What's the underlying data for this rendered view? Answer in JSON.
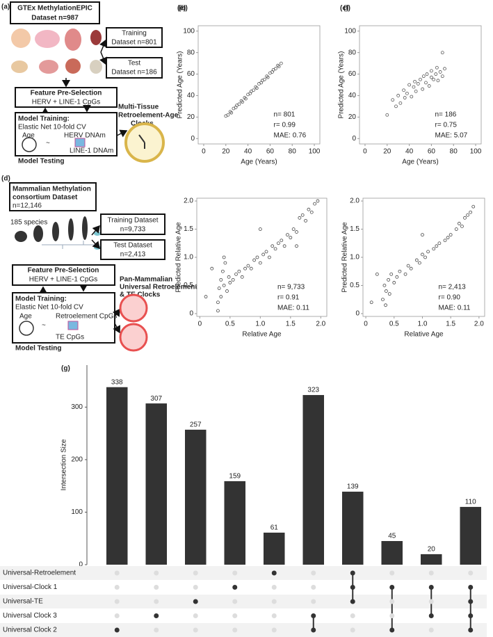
{
  "panel_a": {
    "label": "(a)",
    "dataset": [
      "GTEx MethylationEPIC",
      "Dataset n=987"
    ],
    "training": [
      "Training",
      "Dataset n=801"
    ],
    "test": [
      "Test",
      "Dataset n=186"
    ],
    "feature": [
      "Feature Pre-Selection",
      "HERV + LINE-1 CpGs"
    ],
    "model": [
      "Model Training:",
      "Elastic Net 10-fold CV",
      "Age",
      "HERV DNAm",
      "~",
      "LINE-1 DNAm"
    ],
    "testing": "Model Testing",
    "clocks": [
      "Multi-Tissue",
      "Retroelement-Age",
      "Clocks"
    ]
  },
  "panel_d": {
    "label": "(d)",
    "dataset": [
      "Mammalian Methylation",
      "consortium  Dataset",
      "n=12,146"
    ],
    "species": "185 species",
    "training": [
      "Training Dataset",
      "n=9,733"
    ],
    "test": [
      "Test Dataset",
      "n=2,413"
    ],
    "feature": [
      "Feature Pre-Selection",
      "HERV + LINE-1 CpGs"
    ],
    "model": [
      "Model Training:",
      "Elastic Net 10-fold CV",
      "Age",
      "Retroelement CpGs",
      "~",
      "TE CpGs"
    ],
    "testing": "Model Testing",
    "clocks": [
      "Pan-Mammalian",
      "Universal Retroelement",
      "& TE Clocks"
    ]
  },
  "chart_data": [
    {
      "type": "scatter",
      "panel": "(b)",
      "xlabel": "Age (Years)",
      "ylabel": "Predicted Age (Years)",
      "annotations": [
        "n= 801",
        "r= 0.99",
        "MAE: 0.76"
      ],
      "color": "#555",
      "xlim": [
        -5,
        105
      ],
      "ylim": [
        -5,
        105
      ],
      "xticks": [
        0,
        20,
        40,
        60,
        80,
        100
      ],
      "yticks": [
        0,
        20,
        40,
        60,
        80,
        100
      ],
      "x": [
        20,
        22,
        24,
        25,
        27,
        29,
        30,
        32,
        34,
        35,
        37,
        38,
        40,
        42,
        43,
        45,
        47,
        48,
        50,
        52,
        53,
        55,
        57,
        58,
        60,
        62,
        63,
        65,
        67,
        68,
        70
      ],
      "y": [
        21,
        22,
        25,
        24,
        28,
        29,
        31,
        32,
        35,
        34,
        38,
        37,
        41,
        42,
        44,
        45,
        48,
        47,
        51,
        52,
        54,
        55,
        58,
        57,
        61,
        62,
        64,
        65,
        68,
        67,
        70
      ]
    },
    {
      "type": "scatter",
      "panel": "(c)",
      "xlabel": "Age (Years)",
      "ylabel": "Predicted Age (Years)",
      "annotations": [
        "n= 186",
        "r= 0.75",
        "MAE: 5.07"
      ],
      "color": "#555",
      "xlim": [
        -5,
        105
      ],
      "ylim": [
        -5,
        105
      ],
      "xticks": [
        0,
        20,
        40,
        60,
        80,
        100
      ],
      "yticks": [
        0,
        20,
        40,
        60,
        80,
        100
      ],
      "x": [
        20,
        25,
        28,
        30,
        32,
        35,
        36,
        38,
        40,
        42,
        44,
        45,
        46,
        48,
        50,
        52,
        53,
        55,
        56,
        58,
        60,
        60,
        62,
        64,
        65,
        66,
        68,
        70,
        70,
        72
      ],
      "y": [
        22,
        36,
        30,
        40,
        33,
        45,
        38,
        42,
        50,
        39,
        48,
        53,
        44,
        51,
        55,
        46,
        58,
        52,
        60,
        49,
        57,
        63,
        55,
        60,
        66,
        54,
        62,
        80,
        58,
        65
      ]
    },
    {
      "type": "scatter",
      "panel": "(e)",
      "xlabel": "Relative Age",
      "ylabel": "Predicted Relative Age",
      "annotations": [
        "n= 9,733",
        "r= 0.91",
        "MAE: 0.11"
      ],
      "color": "#444",
      "xlim": [
        -0.05,
        2.1
      ],
      "ylim": [
        -0.05,
        2.05
      ],
      "xticks": [
        0,
        0.5,
        {
          "value": 1,
          "label": "1.0"
        },
        1.5,
        {
          "value": 2,
          "label": "2.0"
        }
      ],
      "yticks": [
        0,
        0.5,
        {
          "value": 1,
          "label": "1.0"
        },
        1.5,
        {
          "value": 2,
          "label": "2.0"
        }
      ],
      "x": [
        0.3,
        0.32,
        0.35,
        0.35,
        0.38,
        0.4,
        0.42,
        0.45,
        0.48,
        0.5,
        0.3,
        0.4,
        0.55,
        0.6,
        0.65,
        0.7,
        0.75,
        0.8,
        0.85,
        0.9,
        0.95,
        1.0,
        1.05,
        1.1,
        1.15,
        1.2,
        1.25,
        1.3,
        1.35,
        1.4,
        1.45,
        1.5,
        1.55,
        1.6,
        1.65,
        1.7,
        1.75,
        1.8,
        1.85,
        1.9,
        1.95,
        0.1,
        0.2,
        1.0,
        1.6
      ],
      "y": [
        0.2,
        0.45,
        0.6,
        0.3,
        0.75,
        0.5,
        0.9,
        0.4,
        0.65,
        0.55,
        0.05,
        1.0,
        0.6,
        0.7,
        0.75,
        0.65,
        0.8,
        0.85,
        0.8,
        0.95,
        1.0,
        0.9,
        1.05,
        1.1,
        1.0,
        1.2,
        1.15,
        1.25,
        1.3,
        1.2,
        1.4,
        1.35,
        1.5,
        1.45,
        1.7,
        1.75,
        1.65,
        1.85,
        1.8,
        1.95,
        2.0,
        0.3,
        0.8,
        1.5,
        1.2
      ]
    },
    {
      "type": "scatter",
      "panel": "(f)",
      "xlabel": "Relative Age",
      "ylabel": "Predicted Relative Age",
      "annotations": [
        "n= 2,413",
        "r= 0.90",
        "MAE: 0.11"
      ],
      "color": "#444",
      "xlim": [
        -0.05,
        2.1
      ],
      "ylim": [
        -0.05,
        2.05
      ],
      "xticks": [
        0,
        0.5,
        {
          "value": 1,
          "label": "1.0"
        },
        1.5,
        {
          "value": 2,
          "label": "2.0"
        }
      ],
      "yticks": [
        0,
        0.5,
        {
          "value": 1,
          "label": "1.0"
        },
        1.5,
        {
          "value": 2,
          "label": "2.0"
        }
      ],
      "x": [
        0.3,
        0.33,
        0.36,
        0.4,
        0.42,
        0.45,
        0.5,
        0.35,
        0.55,
        0.6,
        0.7,
        0.75,
        0.8,
        0.9,
        0.95,
        1.0,
        1.05,
        1.1,
        1.2,
        1.25,
        1.3,
        1.4,
        1.45,
        1.5,
        1.6,
        1.65,
        1.7,
        1.75,
        1.8,
        1.85,
        1.9,
        0.1,
        0.2,
        1.0
      ],
      "y": [
        0.25,
        0.5,
        0.4,
        0.6,
        0.35,
        0.7,
        0.55,
        0.15,
        0.65,
        0.75,
        0.7,
        0.85,
        0.8,
        0.95,
        0.9,
        1.05,
        1.0,
        1.1,
        1.15,
        1.2,
        1.25,
        1.3,
        1.35,
        1.4,
        1.5,
        1.6,
        1.55,
        1.7,
        1.75,
        1.8,
        1.9,
        0.2,
        0.7,
        1.4
      ]
    },
    {
      "type": "upset",
      "panel": "(g)",
      "ylabel": "Intersection Size",
      "color": "#333",
      "ylim": [
        0,
        380
      ],
      "yticks": [
        0,
        100,
        200,
        300
      ],
      "values": [
        338,
        307,
        257,
        159,
        61,
        323,
        139,
        45,
        20,
        110
      ],
      "sets": [
        "Universal-Retroelement",
        "Universal-Clock 1",
        "Universal-TE",
        "Universal Clock 3",
        "Universal Clock 2"
      ],
      "set_colors": [
        "#e02020",
        "#222",
        "#e02020",
        "#222",
        "#222"
      ],
      "intersections": [
        [
          4
        ],
        [
          3
        ],
        [
          2
        ],
        [
          1
        ],
        [
          0
        ],
        [
          3,
          4
        ],
        [
          0,
          1,
          2
        ],
        [
          1,
          4
        ],
        [
          1,
          3
        ],
        [
          1,
          2,
          3,
          4
        ]
      ]
    }
  ]
}
